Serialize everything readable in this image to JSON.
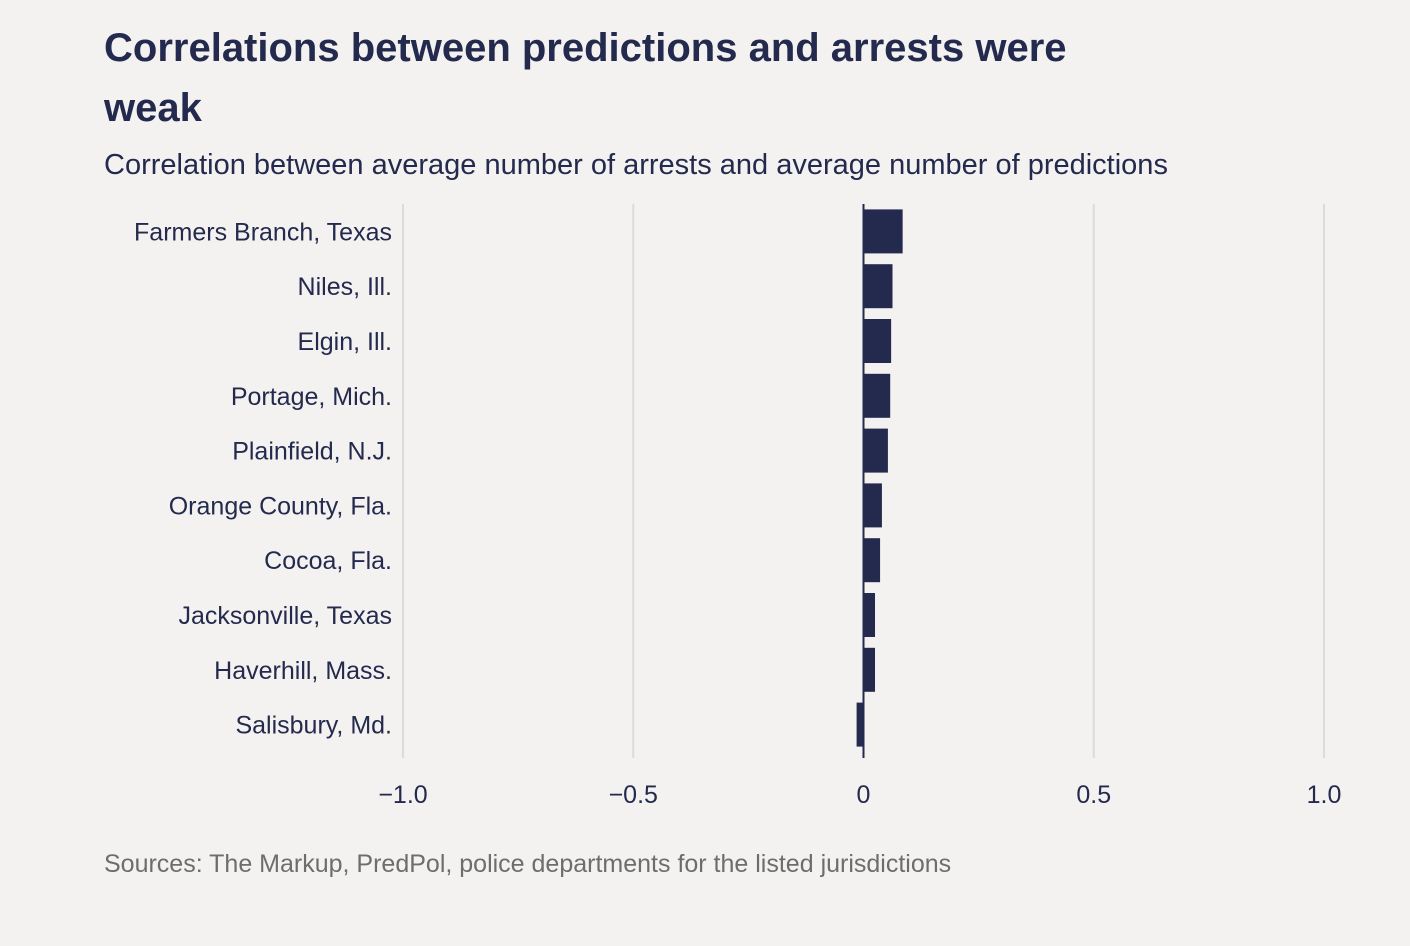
{
  "chart_data": {
    "type": "bar",
    "orientation": "horizontal",
    "title": "Correlations between predictions and arrests were weak",
    "subtitle": "Correlation between average number of arrests and average number of predictions",
    "source": "Sources: The Markup, PredPol, police departments for the listed jurisdictions",
    "categories": [
      "Farmers Branch, Texas",
      "Niles, Ill.",
      "Elgin, Ill.",
      "Portage, Mich.",
      "Plainfield, N.J.",
      "Orange County, Fla.",
      "Cocoa, Fla.",
      "Jacksonville, Texas",
      "Haverhill, Mass.",
      "Salisbury, Md."
    ],
    "values": [
      0.085,
      0.063,
      0.06,
      0.058,
      0.053,
      0.04,
      0.036,
      0.025,
      0.025,
      -0.015
    ],
    "xlim": [
      -1.0,
      1.0
    ],
    "xticks": [
      -1.0,
      -0.5,
      0,
      0.5,
      1.0
    ],
    "xtick_labels": [
      "−1.0",
      "−0.5",
      "0",
      "0.5",
      "1.0"
    ],
    "grid": true,
    "bar_color": "#232a4d",
    "grid_color": "#dddbd8",
    "axis_color": "#232a4d"
  }
}
